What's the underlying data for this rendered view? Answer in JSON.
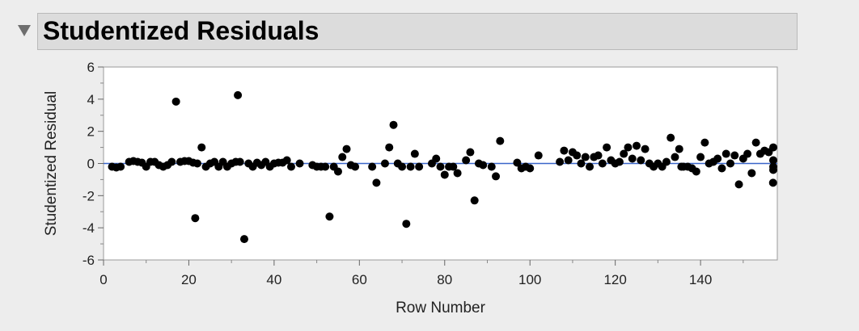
{
  "header": {
    "title": "Studentized Residuals"
  },
  "chart_data": {
    "type": "scatter",
    "title": "Studentized Residuals",
    "xlabel": "Row Number",
    "ylabel": "Studentized Residual",
    "xlim": [
      0,
      158
    ],
    "ylim": [
      -6,
      6
    ],
    "xticks": [
      0,
      20,
      40,
      60,
      80,
      100,
      120,
      140
    ],
    "yticks": [
      -6,
      -4,
      -2,
      0,
      2,
      4,
      6
    ],
    "reference_line": {
      "y": 0,
      "color": "#3a66c9"
    },
    "grid": false,
    "point_color": "#000000",
    "points": [
      [
        2,
        -0.2
      ],
      [
        3,
        -0.25
      ],
      [
        4,
        -0.2
      ],
      [
        6,
        0.1
      ],
      [
        7,
        0.15
      ],
      [
        8,
        0.1
      ],
      [
        9,
        0.05
      ],
      [
        10,
        -0.2
      ],
      [
        11,
        0.1
      ],
      [
        12,
        0.1
      ],
      [
        13,
        -0.1
      ],
      [
        14,
        -0.2
      ],
      [
        15,
        -0.1
      ],
      [
        16,
        0.1
      ],
      [
        17,
        3.85
      ],
      [
        18,
        0.1
      ],
      [
        19,
        0.15
      ],
      [
        20,
        0.15
      ],
      [
        21,
        0.05
      ],
      [
        21.5,
        -3.4
      ],
      [
        22,
        0.0
      ],
      [
        23,
        1.0
      ],
      [
        24,
        -0.2
      ],
      [
        25,
        0.0
      ],
      [
        26,
        0.1
      ],
      [
        27,
        -0.2
      ],
      [
        28,
        0.1
      ],
      [
        29,
        -0.2
      ],
      [
        30,
        0.0
      ],
      [
        31,
        0.1
      ],
      [
        31.5,
        4.25
      ],
      [
        32,
        0.1
      ],
      [
        33,
        -4.7
      ],
      [
        34,
        0.0
      ],
      [
        35,
        -0.2
      ],
      [
        36,
        0.05
      ],
      [
        37,
        -0.1
      ],
      [
        38,
        0.1
      ],
      [
        39,
        -0.2
      ],
      [
        40,
        0.0
      ],
      [
        41,
        0.05
      ],
      [
        42,
        0.05
      ],
      [
        43,
        0.2
      ],
      [
        44,
        -0.2
      ],
      [
        46,
        0.0
      ],
      [
        49,
        -0.1
      ],
      [
        50,
        -0.2
      ],
      [
        51,
        -0.2
      ],
      [
        52,
        -0.2
      ],
      [
        53,
        -3.3
      ],
      [
        54,
        -0.2
      ],
      [
        55,
        -0.5
      ],
      [
        56,
        0.4
      ],
      [
        57,
        0.9
      ],
      [
        58,
        -0.1
      ],
      [
        59,
        -0.2
      ],
      [
        63,
        -0.2
      ],
      [
        64,
        -1.2
      ],
      [
        66,
        0.0
      ],
      [
        67,
        1.0
      ],
      [
        68,
        2.4
      ],
      [
        69,
        0.0
      ],
      [
        70,
        -0.2
      ],
      [
        71,
        -3.75
      ],
      [
        72,
        -0.2
      ],
      [
        73,
        0.6
      ],
      [
        74,
        -0.2
      ],
      [
        77,
        0.0
      ],
      [
        78,
        0.3
      ],
      [
        79,
        -0.2
      ],
      [
        80,
        -0.7
      ],
      [
        81,
        -0.2
      ],
      [
        82,
        -0.2
      ],
      [
        83,
        -0.6
      ],
      [
        85,
        0.2
      ],
      [
        86,
        0.7
      ],
      [
        87,
        -2.3
      ],
      [
        88,
        0.0
      ],
      [
        89,
        -0.1
      ],
      [
        91,
        -0.2
      ],
      [
        92,
        -0.8
      ],
      [
        93,
        1.4
      ],
      [
        97,
        0.05
      ],
      [
        98,
        -0.3
      ],
      [
        99,
        -0.2
      ],
      [
        100,
        -0.3
      ],
      [
        102,
        0.5
      ],
      [
        107,
        0.1
      ],
      [
        108,
        0.8
      ],
      [
        109,
        0.2
      ],
      [
        110,
        0.7
      ],
      [
        111,
        0.5
      ],
      [
        112,
        0.0
      ],
      [
        113,
        0.4
      ],
      [
        114,
        -0.2
      ],
      [
        115,
        0.4
      ],
      [
        116,
        0.5
      ],
      [
        117,
        0.0
      ],
      [
        118,
        1.0
      ],
      [
        119,
        0.2
      ],
      [
        120,
        0.0
      ],
      [
        121,
        0.1
      ],
      [
        122,
        0.6
      ],
      [
        123,
        1.0
      ],
      [
        124,
        0.3
      ],
      [
        125,
        1.1
      ],
      [
        126,
        0.2
      ],
      [
        127,
        0.9
      ],
      [
        128,
        0.0
      ],
      [
        129,
        -0.2
      ],
      [
        130,
        0.0
      ],
      [
        131,
        -0.2
      ],
      [
        132,
        0.1
      ],
      [
        133,
        1.6
      ],
      [
        134,
        0.4
      ],
      [
        135,
        0.9
      ],
      [
        135.5,
        -0.2
      ],
      [
        136,
        -0.2
      ],
      [
        137,
        -0.2
      ],
      [
        138,
        -0.3
      ],
      [
        139,
        -0.5
      ],
      [
        140,
        0.4
      ],
      [
        141,
        1.3
      ],
      [
        142,
        0.0
      ],
      [
        143,
        0.1
      ],
      [
        144,
        0.3
      ],
      [
        145,
        -0.3
      ],
      [
        146,
        0.6
      ],
      [
        147,
        0.0
      ],
      [
        148,
        0.5
      ],
      [
        149,
        -1.3
      ],
      [
        150,
        0.3
      ],
      [
        151,
        0.6
      ],
      [
        152,
        -0.6
      ],
      [
        153,
        1.3
      ],
      [
        154,
        0.6
      ],
      [
        155,
        0.8
      ],
      [
        156,
        0.7
      ],
      [
        157,
        -1.2
      ],
      [
        158,
        -0.2
      ],
      [
        159,
        1.0
      ],
      [
        160,
        0.2
      ],
      [
        161,
        -0.4
      ]
    ]
  }
}
